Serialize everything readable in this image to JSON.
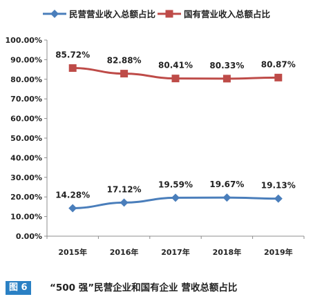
{
  "chart_data": {
    "type": "line",
    "categories": [
      "2015年",
      "2016年",
      "2017年",
      "2018年",
      "2019年"
    ],
    "ylim": [
      0,
      100
    ],
    "yticks": [
      "0.00%",
      "10.00%",
      "20.00%",
      "30.00%",
      "40.00%",
      "50.00%",
      "60.00%",
      "70.00%",
      "80.00%",
      "90.00%",
      "100.00%"
    ],
    "grid": false,
    "legend_position": "top",
    "series": [
      {
        "name": "民营营业收入总额占比",
        "values": [
          14.28,
          17.12,
          19.59,
          19.67,
          19.13
        ],
        "labels": [
          "14.28%",
          "17.12%",
          "19.59%",
          "19.67%",
          "19.13%"
        ],
        "color": "#4a7ebb",
        "marker": "diamond"
      },
      {
        "name": "国有营业收入总额占比",
        "values": [
          85.72,
          82.88,
          80.41,
          80.33,
          80.87
        ],
        "labels": [
          "85.72%",
          "82.88%",
          "80.41%",
          "80.33%",
          "80.87%"
        ],
        "color": "#be4b48",
        "marker": "square"
      }
    ]
  },
  "caption": {
    "badge": "图 6",
    "text": "“500 强”民营企业和国有企业 营收总额占比"
  },
  "colors": {
    "accent_blue": "#2a80c4"
  }
}
